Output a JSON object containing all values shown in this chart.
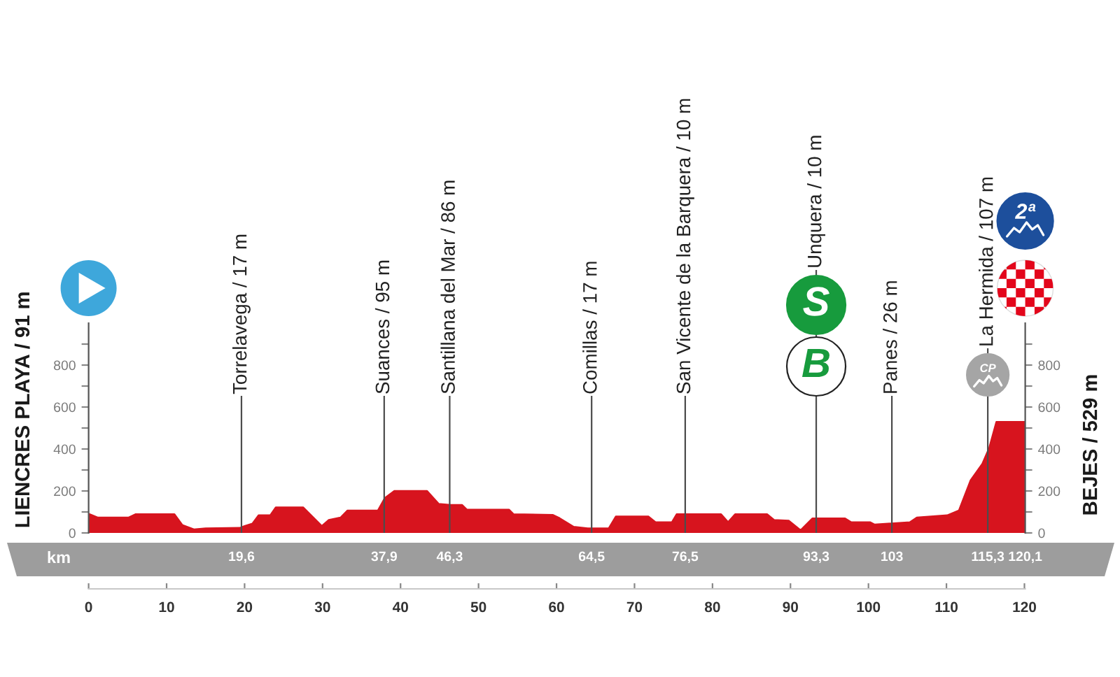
{
  "chart_data": {
    "type": "area",
    "x": [
      0,
      1.2,
      5.1,
      6,
      11,
      12,
      13.5,
      15,
      19.4,
      20,
      21,
      21.8,
      23.3,
      24,
      27.5,
      28.4,
      29.9,
      30.8,
      32.3,
      33.2,
      37.1,
      38,
      39.2,
      43.4,
      44.9,
      46.4,
      47.9,
      48.5,
      53.9,
      54.5,
      59.5,
      60.4,
      62.2,
      64,
      66.7,
      67.6,
      71.8,
      72.7,
      74.8,
      75.4,
      81.1,
      82,
      82.9,
      87,
      87.9,
      89.8,
      91.3,
      92.8,
      97,
      97.8,
      100.2,
      100.8,
      105.3,
      106.2,
      110.1,
      111.6,
      113.1,
      114.6,
      115.5,
      116.4,
      120.1
    ],
    "values": [
      91,
      73,
      73,
      89,
      89,
      38,
      17,
      22,
      24,
      33,
      44,
      84,
      84,
      122,
      122,
      89,
      33,
      62,
      73,
      107,
      107,
      167,
      200,
      200,
      138,
      133,
      133,
      111,
      111,
      89,
      86,
      70,
      29,
      22,
      22,
      78,
      78,
      51,
      51,
      89,
      89,
      51,
      89,
      89,
      62,
      58,
      13,
      69,
      69,
      51,
      51,
      40,
      51,
      73,
      84,
      107,
      251,
      329,
      407,
      529,
      529
    ],
    "color": "#d7141e",
    "xlim": [
      0,
      120.1
    ],
    "xticks": [
      0,
      10,
      20,
      30,
      40,
      50,
      60,
      70,
      80,
      90,
      100,
      110,
      120
    ],
    "ylim": [
      0,
      1000
    ],
    "yticks": [
      0,
      {
        "value": 100,
        "label": null
      },
      200,
      {
        "value": 300,
        "label": null
      },
      400,
      {
        "value": 500,
        "label": null
      },
      600,
      {
        "value": 700,
        "label": null
      },
      800,
      {
        "value": 900,
        "label": null
      }
    ],
    "y2lim": [
      0,
      1000
    ],
    "y2ticks": [
      0,
      {
        "value": 100,
        "label": null
      },
      200,
      {
        "value": 300,
        "label": null
      },
      400,
      {
        "value": 500,
        "label": null
      },
      600,
      {
        "value": 700,
        "label": null
      },
      800,
      {
        "value": 900,
        "label": null
      }
    ],
    "x2lim": [
      0,
      120.1
    ],
    "x2ticks": [
      {
        "value": 19.6,
        "label": "19,6"
      },
      {
        "value": 37.9,
        "label": "37,9"
      },
      {
        "value": 46.3,
        "label": "46,3"
      },
      {
        "value": 64.5,
        "label": "64,5"
      },
      {
        "value": 76.5,
        "label": "76,5"
      },
      {
        "value": 93.3,
        "label": "93,3"
      },
      103,
      {
        "value": 115.3,
        "label": "115,3"
      },
      {
        "value": 120.1,
        "label": "120,1"
      }
    ],
    "x2label": "km",
    "ylabel": "LIENCRES PLAYA / 91 m",
    "y2label": "BEJES / 529 m",
    "ref_lines": [
      {
        "axis": "x",
        "value": 19.6,
        "label": "Torrelavega / 17 m"
      },
      {
        "axis": "x",
        "value": 37.9,
        "label": "Suances / 95 m"
      },
      {
        "axis": "x",
        "value": 46.3,
        "label": "Santillana del Mar / 86 m"
      },
      {
        "axis": "x",
        "value": 64.5,
        "label": "Comillas / 17 m"
      },
      {
        "axis": "x",
        "value": 76.5,
        "label": "San Vicente de la Barquera / 10 m"
      },
      {
        "axis": "x",
        "value": 93.3,
        "label": "Unquera / 10 m"
      },
      {
        "axis": "x",
        "value": 103,
        "label": "Panes / 26 m"
      },
      {
        "axis": "x",
        "value": 115.3,
        "label": "La Hermida / 107 m"
      }
    ],
    "annotations": [
      "S",
      "B",
      "CP",
      "2ª"
    ]
  }
}
